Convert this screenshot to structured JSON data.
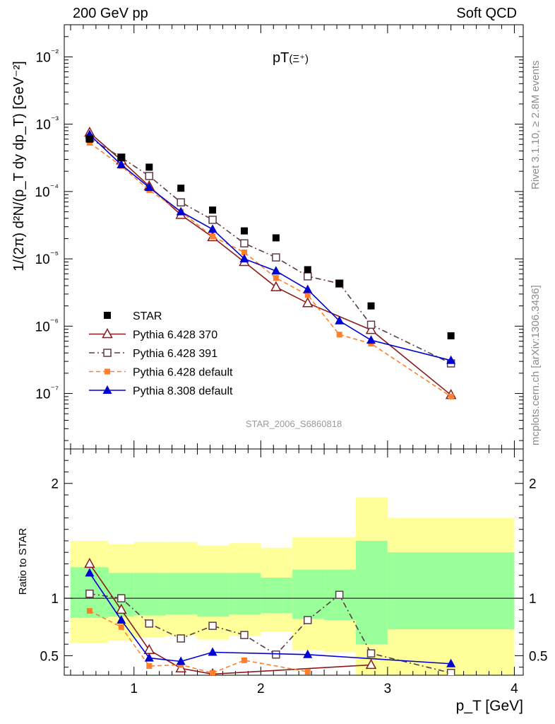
{
  "header": {
    "left": "200 GeV pp",
    "right": "Soft QCD"
  },
  "side_text": {
    "rivet": "Rivet 3.1.10, ≥ 2.8M events",
    "mcplots": "mcplots.cern.ch [arXiv:1306.3436]"
  },
  "watermark": "STAR_2006_S6860818",
  "colors": {
    "data": "#000000",
    "p6_370": "#8b1a1a",
    "p6_391": "#5e3a4a",
    "p6_default": "#ff7f2a",
    "p8_default": "#0000d0",
    "band_inner": "#99ff99",
    "band_outer": "#ffff99"
  },
  "chart_data": [
    {
      "type": "scatter",
      "title": "pT(Ξ⁺)",
      "xlabel": "",
      "ylabel": "1/(2π) d²N/(p_T dy dp_T) [GeV⁻²]",
      "yscale": "log",
      "xlim": [
        0.45,
        4.07
      ],
      "ylim": [
        1.5e-08,
        0.03
      ],
      "ytick_labels": [
        "10⁻⁷",
        "10⁻⁶",
        "10⁻⁵",
        "10⁻⁴",
        "10⁻³",
        "10⁻²"
      ],
      "legend_position": "lower-left",
      "series": [
        {
          "name": "STAR",
          "style": "filled-square",
          "x": [
            0.65,
            0.9,
            1.12,
            1.37,
            1.62,
            1.87,
            2.12,
            2.37,
            2.62,
            2.87,
            3.5
          ],
          "y": [
            0.0006,
            0.00032,
            0.00023,
            0.000112,
            5.3e-05,
            2.6e-05,
            2.05e-05,
            6.9e-06,
            4.3e-06,
            2e-06,
            7.2e-07
          ]
        },
        {
          "name": "Pythia 6.428 370",
          "style": "open-triangle-solid",
          "x": [
            0.65,
            0.9,
            1.12,
            1.37,
            1.62,
            1.87,
            2.12,
            2.37,
            2.62,
            2.87,
            3.5
          ],
          "y": [
            0.00075,
            0.00029,
            0.00012,
            4.5e-05,
            2.1e-05,
            9e-06,
            3.8e-06,
            2.2e-06,
            null,
            8.8e-07,
            9.5e-08
          ]
        },
        {
          "name": "Pythia 6.428 391",
          "style": "open-square-dashdot",
          "x": [
            0.65,
            0.9,
            1.12,
            1.37,
            1.62,
            1.87,
            2.12,
            2.37,
            2.62,
            2.87,
            3.5
          ],
          "y": [
            0.00062,
            0.00032,
            0.00017,
            6.9e-05,
            3.8e-05,
            1.7e-05,
            1.05e-05,
            5.5e-06,
            4.3e-06,
            1.05e-06,
            2.8e-07
          ]
        },
        {
          "name": "Pythia 6.428 default",
          "style": "filled-small-square-dashed",
          "x": [
            0.65,
            0.9,
            1.12,
            1.37,
            1.62,
            1.87,
            2.12,
            2.37,
            2.62,
            2.87,
            3.5
          ],
          "y": [
            0.00053,
            0.00024,
            0.000105,
            5e-05,
            2.15e-05,
            1.25e-05,
            5.2e-06,
            2.9e-06,
            7.5e-07,
            5.5e-07,
            9e-08
          ]
        },
        {
          "name": "Pythia 8.308 default",
          "style": "filled-triangle-solid",
          "x": [
            0.65,
            0.9,
            1.12,
            1.37,
            1.62,
            1.87,
            2.12,
            2.37,
            2.62,
            2.87,
            3.5
          ],
          "y": [
            0.0007,
            0.00025,
            0.000115,
            5e-05,
            2.75e-05,
            1e-05,
            6.6e-06,
            3.5e-06,
            1.2e-06,
            6.2e-07,
            3.1e-07
          ]
        }
      ]
    },
    {
      "type": "scatter",
      "title": "",
      "xlabel": "p_T [GeV]",
      "ylabel": "Ratio to STAR",
      "xlim": [
        0.45,
        4.07
      ],
      "ylim": [
        0.33,
        2.3
      ],
      "xticks": [
        1,
        2,
        3,
        4
      ],
      "xtick_labels": [
        "1",
        "2",
        "3",
        "4"
      ],
      "yticks": [
        0.5,
        1,
        2
      ],
      "ytick_labels": [
        "0.5",
        "1",
        "2"
      ],
      "bands": [
        {
          "x0": 0.5,
          "x1": 0.8,
          "inner": [
            0.83,
            1.27
          ],
          "outer": [
            0.61,
            1.5
          ]
        },
        {
          "x0": 0.8,
          "x1": 1.0,
          "inner": [
            0.84,
            1.22
          ],
          "outer": [
            0.63,
            1.47
          ]
        },
        {
          "x0": 1.0,
          "x1": 1.25,
          "inner": [
            0.85,
            1.22
          ],
          "outer": [
            0.66,
            1.49
          ]
        },
        {
          "x0": 1.25,
          "x1": 1.5,
          "inner": [
            0.86,
            1.22
          ],
          "outer": [
            0.67,
            1.49
          ]
        },
        {
          "x0": 1.5,
          "x1": 1.75,
          "inner": [
            0.84,
            1.22
          ],
          "outer": [
            0.64,
            1.46
          ]
        },
        {
          "x0": 1.75,
          "x1": 2.0,
          "inner": [
            0.86,
            1.22
          ],
          "outer": [
            0.67,
            1.48
          ]
        },
        {
          "x0": 2.0,
          "x1": 2.25,
          "inner": [
            0.87,
            1.18
          ],
          "outer": [
            0.71,
            1.44
          ]
        },
        {
          "x0": 2.25,
          "x1": 2.5,
          "inner": [
            0.82,
            1.25
          ],
          "outer": [
            0.55,
            1.53
          ]
        },
        {
          "x0": 2.5,
          "x1": 2.75,
          "inner": [
            0.81,
            1.25
          ],
          "outer": [
            0.53,
            1.53
          ]
        },
        {
          "x0": 2.75,
          "x1": 3.0,
          "inner": [
            0.6,
            1.5
          ],
          "outer": [
            0.33,
            1.88
          ]
        },
        {
          "x0": 3.0,
          "x1": 4.0,
          "inner": [
            0.73,
            1.4
          ],
          "outer": [
            0.33,
            1.7
          ]
        }
      ],
      "series": [
        {
          "name": "Pythia 6.428 370",
          "x": [
            0.65,
            0.9,
            1.12,
            1.37,
            1.62,
            2.87
          ],
          "y": [
            1.3,
            0.9,
            0.55,
            0.39,
            0.34,
            0.42
          ]
        },
        {
          "name": "Pythia 6.428 391",
          "x": [
            0.65,
            0.9,
            1.12,
            1.37,
            1.62,
            1.87,
            2.12,
            2.37,
            2.62,
            2.87,
            3.5
          ],
          "y": [
            1.04,
            1.0,
            0.78,
            0.65,
            0.76,
            0.68,
            0.51,
            0.81,
            1.03,
            0.52,
            0.35
          ]
        },
        {
          "name": "Pythia 6.428 default",
          "x": [
            0.65,
            0.9,
            1.12,
            1.37,
            1.62,
            1.87,
            2.37
          ],
          "y": [
            0.89,
            0.75,
            0.41,
            0.42,
            0.35,
            0.46,
            0.36
          ]
        },
        {
          "name": "Pythia 8.308 default",
          "x": [
            0.65,
            0.9,
            1.12,
            1.37,
            1.62,
            2.37,
            3.5
          ],
          "y": [
            1.22,
            0.81,
            0.48,
            0.45,
            0.53,
            0.51,
            0.43
          ]
        }
      ]
    }
  ]
}
